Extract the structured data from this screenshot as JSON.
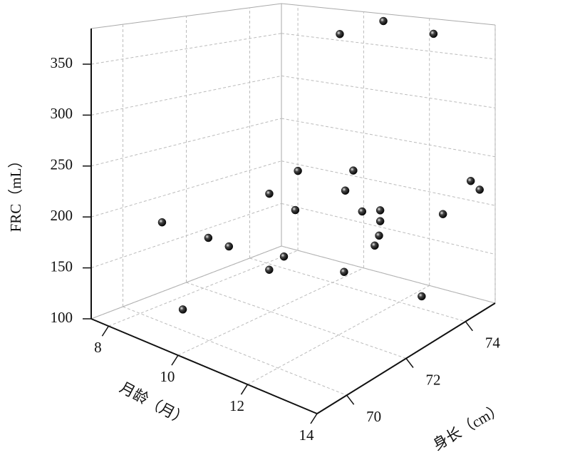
{
  "chart_data": {
    "type": "scatter3d",
    "x_label": "月龄（月）",
    "y_label": "身长（cm）",
    "z_label": "FRC（mL）",
    "x": [
      10.4,
      10.6,
      12.4,
      9.0,
      9.8,
      10.4,
      10.5,
      10.8,
      11.8,
      12.0,
      12.1,
      9.6,
      11.9,
      12.2,
      12.7,
      12.7,
      12.7,
      13.2,
      13.6,
      12.7,
      13.4,
      13.5,
      13.8,
      13.8
    ],
    "y": [
      73.8,
      75.0,
      74.7,
      69.6,
      70.2,
      70.2,
      71.4,
      72.0,
      70.8,
      70.2,
      69.6,
      69.6,
      72.6,
      72.0,
      72.0,
      72.6,
      72.6,
      72.0,
      71.4,
      71.4,
      73.2,
      73.8,
      74.4,
      74.7
    ],
    "z": [
      374,
      377,
      374,
      209,
      197,
      196,
      235,
      254,
      241,
      206,
      203,
      131,
      257,
      248,
      232,
      224,
      213,
      213,
      217,
      181,
      134,
      208,
      234,
      220
    ],
    "color": "#111111",
    "xlim": [
      7.5,
      14
    ],
    "xticks": [
      8,
      10,
      12,
      14
    ],
    "ylim": [
      69,
      75
    ],
    "yticks": [
      70,
      72,
      74
    ],
    "zlim": [
      100,
      385
    ],
    "zticks": [
      100,
      150,
      200,
      250,
      300,
      350
    ],
    "grid": true
  }
}
